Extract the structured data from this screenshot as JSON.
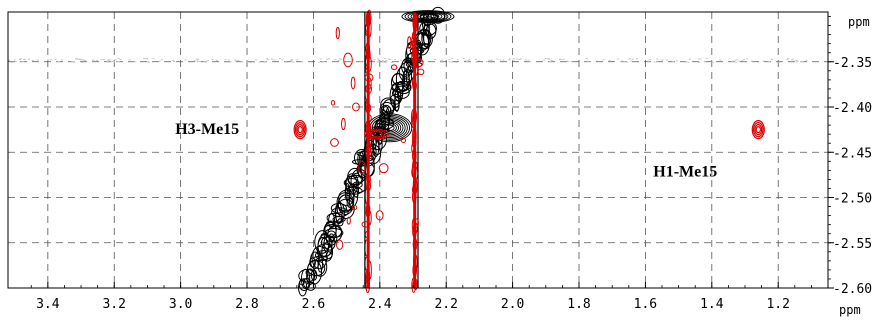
{
  "chart_data": {
    "type": "heatmap",
    "spectrum": "2D NMR contour plot",
    "x_axis": {
      "unit": "ppm",
      "range": [
        3.52,
        1.05
      ],
      "ticks": [
        "3.4",
        "3.2",
        "3.0",
        "2.8",
        "2.6",
        "2.4",
        "2.2",
        "2.0",
        "1.8",
        "1.6",
        "1.4",
        "1.2"
      ],
      "reversed": true
    },
    "y_axis": {
      "unit": "ppm",
      "range": [
        2.295,
        2.6
      ],
      "ticks": [
        "2.35",
        "2.40",
        "2.45",
        "2.50",
        "2.55",
        "2.60"
      ],
      "position": "right"
    },
    "grid": true,
    "grid_style": "dashed",
    "annotations": [
      {
        "text": "H3-Me15",
        "x": 2.92,
        "y": 2.43
      },
      {
        "text": "H1-Me15",
        "x": 1.48,
        "y": 2.477
      }
    ],
    "cross_peaks": [
      {
        "label": "H3-Me15",
        "x": 2.64,
        "y": 2.425,
        "color": "#e00000"
      },
      {
        "label": "H1-Me15",
        "x": 1.26,
        "y": 2.425,
        "color": "#e00000"
      }
    ],
    "colors": {
      "positive": "#000000",
      "negative": "#e00000"
    }
  }
}
